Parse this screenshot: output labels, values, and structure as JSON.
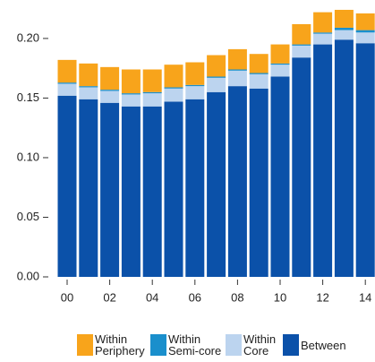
{
  "chart_data": {
    "type": "stacked-bar",
    "categories": [
      "00",
      null,
      "02",
      null,
      "04",
      null,
      "06",
      null,
      "08",
      null,
      "10",
      null,
      "12",
      null,
      "14"
    ],
    "series": [
      {
        "name": "Between",
        "color": "#0b51a9",
        "values": [
          0.152,
          0.149,
          0.146,
          0.143,
          0.143,
          0.147,
          0.149,
          0.155,
          0.16,
          0.158,
          0.168,
          0.184,
          0.195,
          0.199,
          0.196
        ]
      },
      {
        "name": "Within Core",
        "color": "#bcd4ef",
        "values": [
          0.01,
          0.01,
          0.01,
          0.01,
          0.011,
          0.011,
          0.011,
          0.012,
          0.013,
          0.012,
          0.01,
          0.01,
          0.009,
          0.008,
          0.009
        ]
      },
      {
        "name": "Within Semi-core",
        "color": "#1a8fcc",
        "values": [
          0.001,
          0.001,
          0.001,
          0.001,
          0.001,
          0.001,
          0.001,
          0.001,
          0.001,
          0.001,
          0.001,
          0.001,
          0.001,
          0.002,
          0.002
        ]
      },
      {
        "name": "Within Periphery",
        "color": "#f8a41b",
        "values": [
          0.019,
          0.019,
          0.019,
          0.02,
          0.019,
          0.019,
          0.019,
          0.018,
          0.017,
          0.016,
          0.016,
          0.017,
          0.017,
          0.015,
          0.014
        ]
      }
    ],
    "ylim": [
      0,
      0.23
    ],
    "yticks": [
      {
        "value": 0,
        "label": "0.00"
      },
      0.05,
      {
        "value": 0.1,
        "label": "0.10"
      },
      0.15,
      {
        "value": 0.2,
        "label": "0.20"
      }
    ],
    "grid": false
  }
}
